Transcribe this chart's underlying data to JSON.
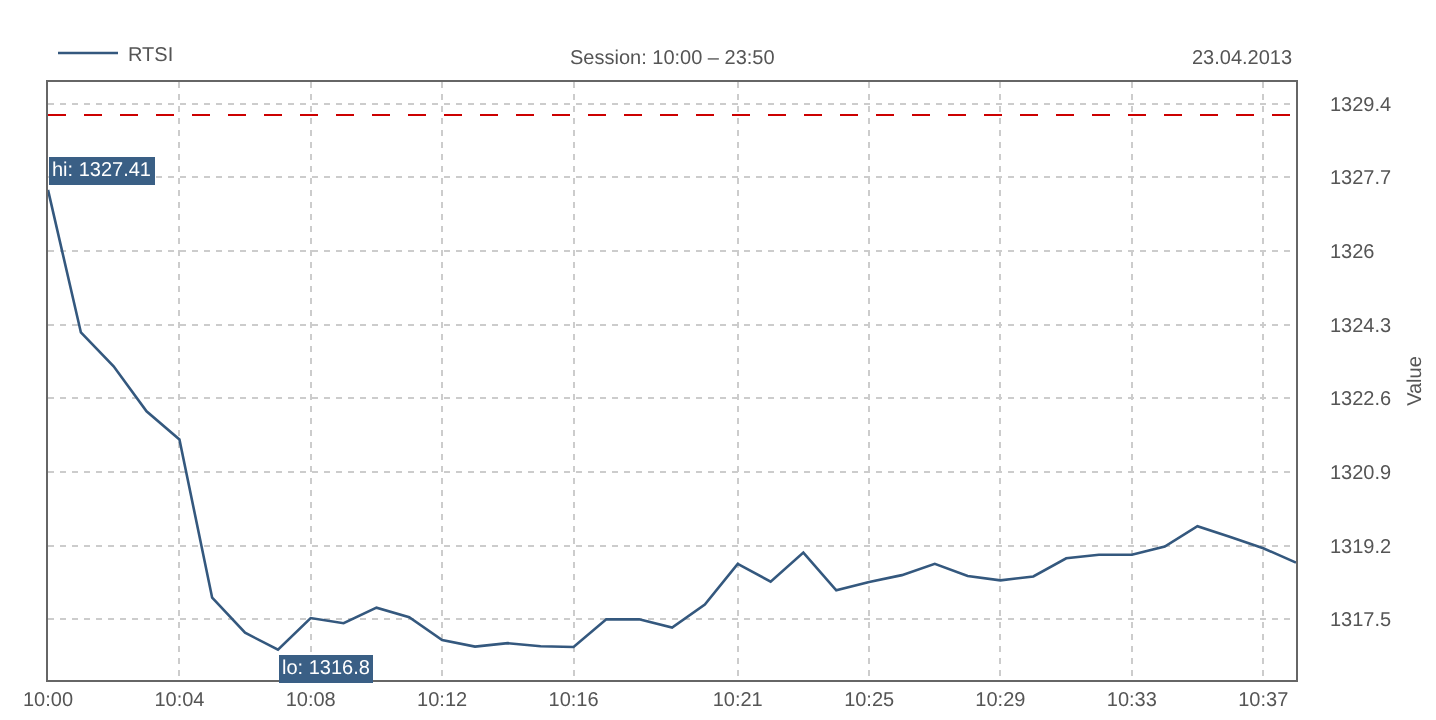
{
  "chart_data": {
    "type": "line",
    "subtitle": "Session: 10:00 – 23:50",
    "ylabel": "Value",
    "annotations": [
      "23.04.2013",
      {
        "text": "hi: 1327.41",
        "x": 10,
        "y": 1327.41
      },
      {
        "text": "lo: 1316.8",
        "x": 10.1167,
        "y": 1316.8
      }
    ],
    "x": [
      10,
      10.0167,
      10.0333,
      10.05,
      10.0667,
      10.0833,
      10.1,
      10.1167,
      10.1333,
      10.15,
      10.1667,
      10.1833,
      10.2,
      10.2167,
      10.2333,
      10.25,
      10.2667,
      10.2833,
      10.3,
      10.3167,
      10.3333,
      10.35,
      10.3667,
      10.3833,
      10.4,
      10.4167,
      10.4333,
      10.45,
      10.4667,
      10.4833,
      10.5,
      10.5167,
      10.5333,
      10.55,
      10.5667,
      10.5833,
      10.6,
      10.6167,
      10.6333
    ],
    "series": [
      {
        "name": "RTSI",
        "color": "#34587e",
        "values": [
          1327.41,
          1324.12,
          1323.34,
          1322.3,
          1321.65,
          1318.0,
          1317.19,
          1316.8,
          1317.53,
          1317.41,
          1317.77,
          1317.55,
          1317.02,
          1316.87,
          1316.95,
          1316.88,
          1316.86,
          1317.5,
          1317.5,
          1317.31,
          1317.84,
          1318.78,
          1318.37,
          1319.04,
          1318.17,
          1318.36,
          1318.52,
          1318.78,
          1318.5,
          1318.4,
          1318.49,
          1318.91,
          1318.99,
          1318.99,
          1319.18,
          1319.65,
          1319.4,
          1319.14,
          1318.81
        ]
      }
    ],
    "xlim": [
      10,
      10.6333
    ],
    "xticks": [
      {
        "value": 10,
        "label": "10:00"
      },
      {
        "value": 10.0667,
        "label": "10:04"
      },
      {
        "value": 10.1333,
        "label": "10:08"
      },
      {
        "value": 10.2,
        "label": "10:12"
      },
      {
        "value": 10.2667,
        "label": "10:16"
      },
      {
        "value": 10.35,
        "label": "10:21"
      },
      {
        "value": 10.4167,
        "label": "10:25"
      },
      {
        "value": 10.4833,
        "label": "10:29"
      },
      {
        "value": 10.55,
        "label": "10:33"
      },
      {
        "value": 10.6167,
        "label": "10:37"
      }
    ],
    "ylim": [
      1316.1,
      1329.9
    ],
    "yticks": [
      1317.5,
      1319.2,
      1320.9,
      1322.6,
      1324.3,
      1326,
      1327.7,
      1329.4
    ],
    "ref_lines": [
      {
        "axis": "y",
        "value": 1329.14,
        "label": null,
        "color": "#cc0000",
        "line_style": "dashed"
      }
    ],
    "grid": true,
    "legend": "top left",
    "marker": "none",
    "line_style": "solid"
  }
}
